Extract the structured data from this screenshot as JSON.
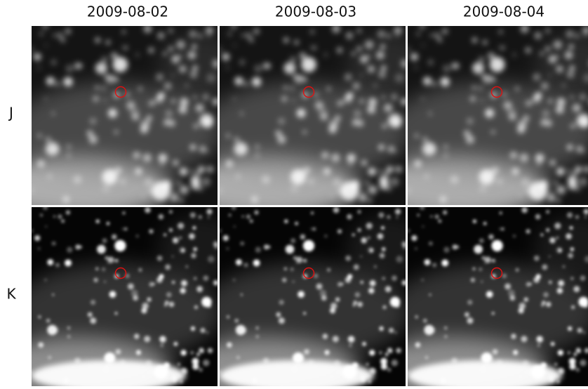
{
  "columns": [
    "2009-08-02",
    "2009-08-03",
    "2009-08-04"
  ],
  "rows": [
    "J",
    "K"
  ]
}
